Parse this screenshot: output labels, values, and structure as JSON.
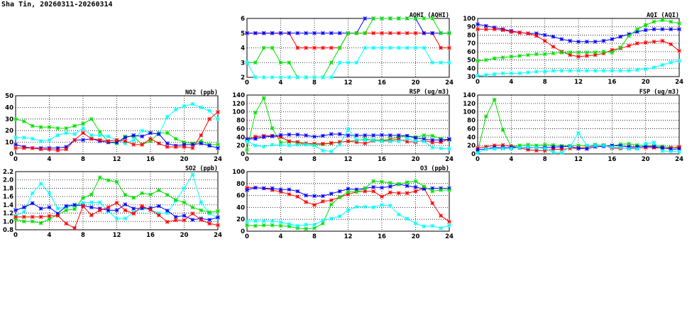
{
  "page_title": "Sha Tin, 20260311-20260314",
  "chart_data": [
    {
      "type": "line",
      "title": "AQHI (AQHI)",
      "ylim": [
        2,
        6
      ],
      "yticks": [
        "2",
        "3",
        "4",
        "5",
        "6"
      ],
      "xlim": [
        0,
        24
      ],
      "xticks": [
        "0",
        "4",
        "8",
        "12",
        "16",
        "20",
        "24"
      ],
      "grid": true,
      "series": [
        {
          "color": "#ff0000",
          "values": [
            5,
            5,
            5,
            5,
            5,
            5,
            4,
            4,
            4,
            4,
            4,
            4,
            5,
            5,
            5,
            5,
            5,
            5,
            5,
            5,
            5,
            5,
            5,
            4,
            4
          ]
        },
        {
          "color": "#0000ff",
          "values": [
            5,
            5,
            5,
            5,
            5,
            5,
            5,
            5,
            5,
            5,
            5,
            5,
            5,
            5,
            6,
            6,
            6,
            6,
            6,
            6,
            6,
            5,
            5,
            5,
            5
          ]
        },
        {
          "color": "#00e000",
          "values": [
            3,
            3,
            4,
            4,
            3,
            3,
            2,
            2,
            2,
            2,
            3,
            4,
            5,
            5,
            5,
            6,
            6,
            6,
            6,
            6,
            6,
            6,
            6,
            5,
            5
          ]
        },
        {
          "color": "#00ffff",
          "values": [
            3,
            2,
            2,
            2,
            2,
            2,
            2,
            2,
            2,
            2,
            2,
            3,
            3,
            3,
            4,
            4,
            4,
            4,
            4,
            4,
            4,
            4,
            3,
            3,
            3
          ]
        }
      ]
    },
    {
      "type": "line",
      "title": "AQI (AQI)",
      "ylim": [
        30,
        100
      ],
      "yticks": [
        "30",
        "40",
        "50",
        "60",
        "70",
        "80",
        "90",
        "100"
      ],
      "xlim": [
        0,
        24
      ],
      "xticks": [
        "0",
        "4",
        "8",
        "12",
        "16",
        "20",
        "24"
      ],
      "grid": true,
      "series": [
        {
          "color": "#0000ff",
          "values": [
            93,
            91,
            89,
            87,
            85,
            83,
            82,
            82,
            80,
            78,
            75,
            73,
            72,
            72,
            72,
            73,
            75,
            78,
            81,
            84,
            86,
            87,
            87,
            87,
            87
          ]
        },
        {
          "color": "#ff0000",
          "values": [
            87,
            87,
            87,
            86,
            84,
            83,
            82,
            79,
            73,
            66,
            60,
            56,
            54,
            55,
            56,
            58,
            62,
            64,
            67,
            70,
            71,
            72,
            73,
            69,
            61
          ]
        },
        {
          "color": "#00e000",
          "values": [
            49,
            50,
            52,
            53,
            54,
            55,
            56,
            57,
            57,
            58,
            59,
            59,
            59,
            59,
            59,
            60,
            59,
            65,
            79,
            87,
            92,
            96,
            98,
            96,
            94
          ]
        },
        {
          "color": "#00ffff",
          "values": [
            31,
            32,
            33,
            34,
            34,
            34,
            35,
            36,
            36,
            37,
            37,
            37,
            37,
            37,
            37,
            37,
            37,
            37,
            37,
            38,
            39,
            41,
            44,
            47,
            49
          ]
        }
      ]
    },
    {
      "type": "line",
      "title": "NO2 (ppb)",
      "ylim": [
        0,
        50
      ],
      "yticks": [
        "0",
        "10",
        "20",
        "30",
        "40",
        "50"
      ],
      "xlim": [
        0,
        24
      ],
      "xticks": [
        "0",
        "4",
        "8",
        "12",
        "16",
        "20",
        "24"
      ],
      "grid": true,
      "series": [
        {
          "color": "#00e000",
          "values": [
            30,
            28,
            24,
            23,
            23,
            22,
            22,
            24,
            26,
            30,
            19,
            10,
            9,
            15,
            15,
            8,
            11,
            18,
            18,
            13,
            10,
            9,
            11,
            8,
            8
          ]
        },
        {
          "color": "#00ffff",
          "values": [
            14,
            14,
            13,
            11,
            12,
            16,
            18,
            17,
            22,
            16,
            16,
            15,
            12,
            9,
            12,
            20,
            18,
            17,
            32,
            38,
            41,
            43,
            40,
            37,
            30
          ]
        },
        {
          "color": "#0000ff",
          "values": [
            8,
            6,
            5,
            5,
            5,
            5,
            6,
            12,
            12,
            13,
            11,
            10,
            10,
            14,
            16,
            15,
            18,
            17,
            9,
            7,
            8,
            8,
            9,
            7,
            5
          ]
        },
        {
          "color": "#ff0000",
          "values": [
            5,
            5,
            5,
            4,
            4,
            3,
            4,
            12,
            18,
            13,
            12,
            11,
            12,
            11,
            8,
            8,
            13,
            9,
            6,
            6,
            6,
            5,
            16,
            30,
            36
          ]
        }
      ]
    },
    {
      "type": "line",
      "title": "RSP (ug/m3)",
      "ylim": [
        0,
        140
      ],
      "yticks": [
        "0",
        "20",
        "40",
        "60",
        "80",
        "100",
        "120",
        "140"
      ],
      "xlim": [
        0,
        24
      ],
      "xticks": [
        "0",
        "4",
        "8",
        "12",
        "16",
        "20",
        "24"
      ],
      "grid": true,
      "series": [
        {
          "color": "#00e000",
          "values": [
            10,
            98,
            133,
            61,
            27,
            29,
            27,
            22,
            22,
            23,
            25,
            28,
            30,
            32,
            35,
            33,
            33,
            35,
            40,
            43,
            40,
            44,
            43,
            36,
            33
          ]
        },
        {
          "color": "#ff0000",
          "values": [
            35,
            41,
            43,
            43,
            40,
            30,
            28,
            25,
            24,
            24,
            26,
            28,
            30,
            28,
            25,
            31,
            31,
            32,
            35,
            29,
            28,
            32,
            27,
            28,
            35
          ]
        },
        {
          "color": "#0000ff",
          "values": [
            35,
            36,
            40,
            42,
            45,
            46,
            46,
            44,
            41,
            43,
            47,
            47,
            44,
            44,
            44,
            44,
            45,
            44,
            44,
            43,
            38,
            35,
            33,
            33,
            35
          ]
        },
        {
          "color": "#00ffff",
          "values": [
            30,
            20,
            17,
            22,
            21,
            20,
            22,
            22,
            20,
            8,
            6,
            22,
            59,
            33,
            33,
            32,
            30,
            30,
            30,
            36,
            30,
            30,
            15,
            13,
            12
          ]
        }
      ]
    },
    {
      "type": "line",
      "title": "FSP (ug/m3)",
      "ylim": [
        0,
        140
      ],
      "yticks": [
        "0",
        "20",
        "40",
        "60",
        "80",
        "100",
        "120",
        "140"
      ],
      "xlim": [
        0,
        24
      ],
      "xticks": [
        "0",
        "4",
        "8",
        "12",
        "16",
        "20",
        "24"
      ],
      "grid": true,
      "series": [
        {
          "color": "#00e000",
          "values": [
            5,
            89,
            129,
            57,
            17,
            20,
            22,
            20,
            22,
            21,
            19,
            19,
            20,
            19,
            22,
            20,
            19,
            23,
            24,
            21,
            20,
            19,
            18,
            15,
            15
          ]
        },
        {
          "color": "#ff0000",
          "values": [
            14,
            17,
            20,
            21,
            18,
            14,
            10,
            8,
            8,
            11,
            11,
            13,
            14,
            16,
            20,
            21,
            14,
            13,
            14,
            14,
            15,
            15,
            13,
            14,
            17
          ]
        },
        {
          "color": "#0000ff",
          "values": [
            10,
            12,
            15,
            15,
            15,
            15,
            15,
            15,
            15,
            16,
            17,
            18,
            13,
            12,
            17,
            18,
            20,
            19,
            17,
            17,
            18,
            17,
            15,
            11,
            12
          ]
        },
        {
          "color": "#00ffff",
          "values": [
            2,
            12,
            12,
            13,
            13,
            15,
            16,
            15,
            13,
            4,
            3,
            17,
            50,
            20,
            20,
            20,
            16,
            15,
            12,
            12,
            24,
            27,
            7,
            6,
            5
          ]
        }
      ]
    },
    {
      "type": "line",
      "title": "SO2 (ppb)",
      "ylim": [
        0.8,
        2.2
      ],
      "yticks": [
        "0.8",
        "1.0",
        "1.2",
        "1.4",
        "1.6",
        "1.8",
        "2.0",
        "2.2"
      ],
      "xlim": [
        0,
        24
      ],
      "xticks": [
        "0",
        "4",
        "8",
        "12",
        "16",
        "20",
        "24"
      ],
      "grid": true,
      "series": [
        {
          "color": "#00ffff",
          "values": [
            1.14,
            1.23,
            1.68,
            1.91,
            1.68,
            1.31,
            1.35,
            1.38,
            1.45,
            1.46,
            1.46,
            1.24,
            1.07,
            1.07,
            1.22,
            1.31,
            1.28,
            1.2,
            1.2,
            1.5,
            1.8,
            2.13,
            1.46,
            1.19,
            1.09
          ]
        },
        {
          "color": "#00e000",
          "values": [
            1.05,
            1.0,
            1.0,
            0.96,
            1.06,
            1.16,
            1.27,
            1.3,
            1.57,
            1.65,
            2.06,
            1.99,
            1.95,
            1.64,
            1.57,
            1.68,
            1.65,
            1.75,
            1.64,
            1.52,
            1.46,
            1.34,
            1.27,
            1.22,
            1.25
          ]
        },
        {
          "color": "#0000ff",
          "values": [
            1.27,
            1.34,
            1.44,
            1.31,
            1.34,
            1.19,
            1.37,
            1.4,
            1.38,
            1.34,
            1.31,
            1.27,
            1.27,
            1.41,
            1.31,
            1.32,
            1.32,
            1.37,
            1.26,
            1.11,
            1.14,
            1.04,
            1.07,
            1.04,
            1.1
          ]
        },
        {
          "color": "#ff0000",
          "values": [
            1.11,
            1.11,
            1.11,
            1.11,
            1.13,
            1.14,
            0.95,
            0.84,
            1.37,
            1.15,
            1.27,
            1.34,
            1.45,
            1.27,
            1.19,
            1.37,
            1.28,
            1.15,
            0.99,
            1.03,
            1.03,
            1.19,
            1.04,
            0.95,
            0.91
          ]
        }
      ]
    },
    {
      "type": "line",
      "title": "O3 (ppb)",
      "ylim": [
        0,
        100
      ],
      "yticks": [
        "0",
        "20",
        "40",
        "60",
        "80",
        "100"
      ],
      "xlim": [
        0,
        24
      ],
      "xticks": [
        "0",
        "4",
        "8",
        "12",
        "16",
        "20",
        "24"
      ],
      "grid": true,
      "series": [
        {
          "color": "#ff0000",
          "values": [
            73,
            73,
            72,
            69,
            66,
            62,
            58,
            49,
            44,
            50,
            52,
            57,
            62,
            66,
            67,
            67,
            58,
            65,
            64,
            64,
            67,
            72,
            47,
            26,
            16
          ]
        },
        {
          "color": "#0000ff",
          "values": [
            69,
            73,
            72,
            72,
            70,
            70,
            67,
            60,
            59,
            59,
            63,
            67,
            71,
            70,
            72,
            74,
            73,
            75,
            79,
            76,
            74,
            71,
            72,
            72,
            72
          ]
        },
        {
          "color": "#00e000",
          "values": [
            10,
            9,
            10,
            10,
            9,
            8,
            5,
            4,
            5,
            13,
            45,
            57,
            66,
            66,
            72,
            84,
            83,
            81,
            79,
            82,
            84,
            75,
            67,
            69,
            69
          ]
        },
        {
          "color": "#00ffff",
          "values": [
            17,
            17,
            17,
            17,
            15,
            12,
            9,
            11,
            11,
            18,
            21,
            25,
            35,
            41,
            41,
            40,
            44,
            43,
            28,
            21,
            13,
            8,
            9,
            5,
            10
          ]
        }
      ]
    }
  ]
}
